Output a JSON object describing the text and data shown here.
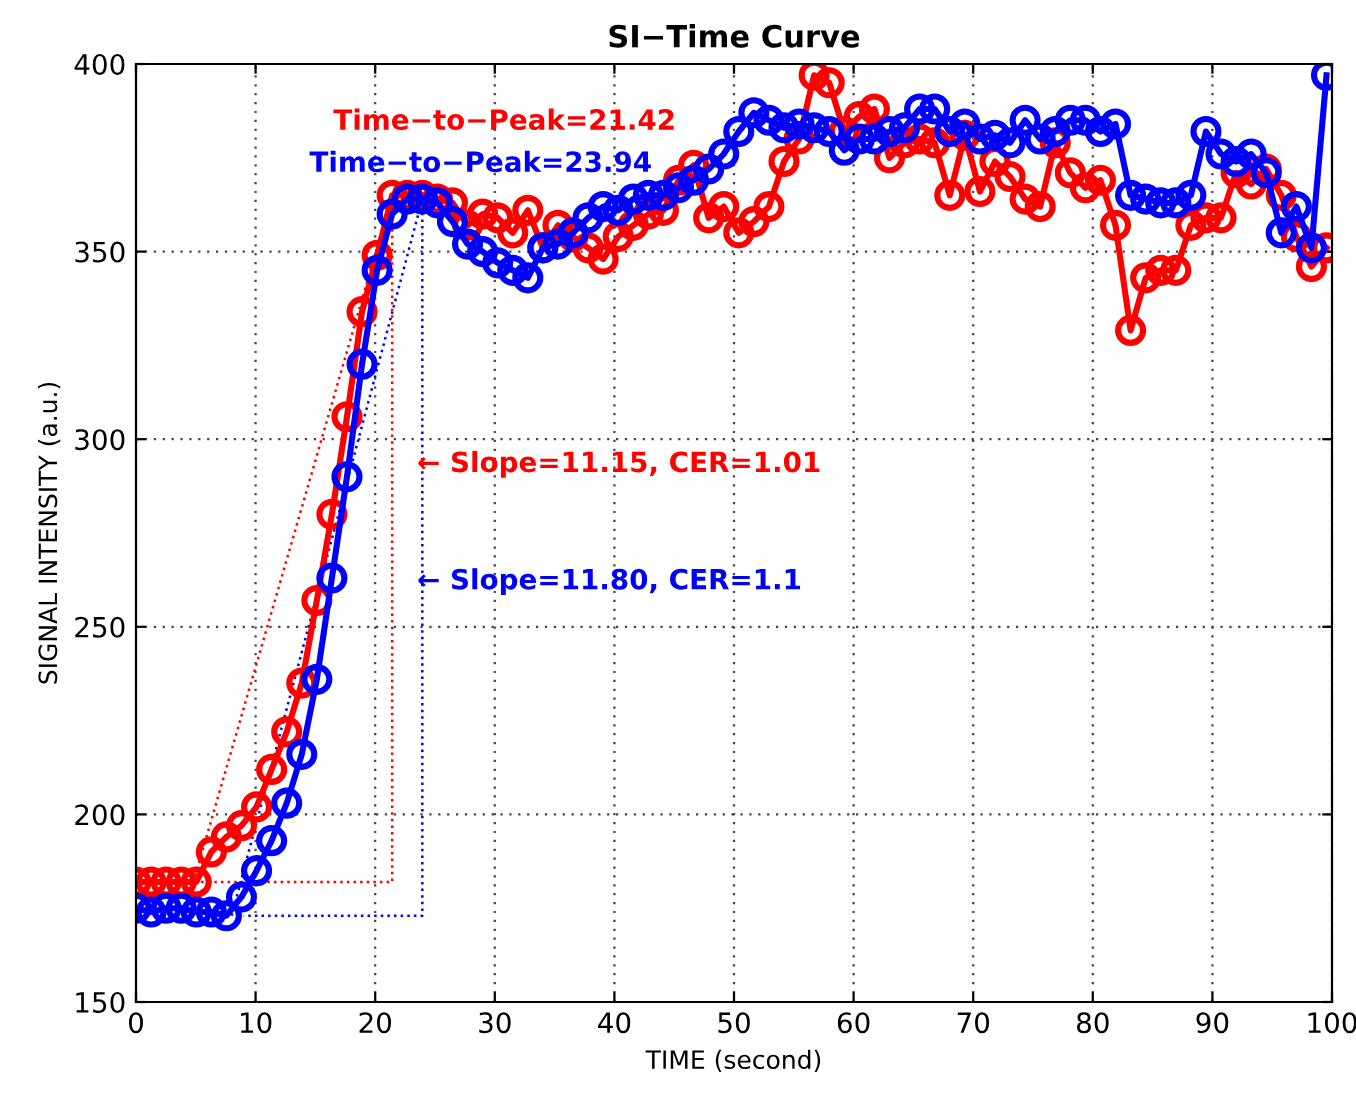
{
  "chart_data": {
    "type": "line",
    "title": "SI−Time Curve",
    "xlabel": "TIME (second)",
    "ylabel": "SIGNAL INTENSITY (a.u.)",
    "x": [
      0,
      1.26,
      2.52,
      3.78,
      5.04,
      6.3,
      7.56,
      8.82,
      10.08,
      11.34,
      12.6,
      13.86,
      15.12,
      16.38,
      17.64,
      18.9,
      20.16,
      21.42,
      22.68,
      23.94,
      25.2,
      26.46,
      27.72,
      28.98,
      30.24,
      31.5,
      32.76,
      34.02,
      35.28,
      36.54,
      37.8,
      39.06,
      40.32,
      41.58,
      42.84,
      44.1,
      45.36,
      46.62,
      47.88,
      49.14,
      50.4,
      51.66,
      52.92,
      54.18,
      55.44,
      56.7,
      57.96,
      59.22,
      60.48,
      61.74,
      63,
      64.26,
      65.52,
      66.78,
      68.04,
      69.3,
      70.56,
      71.82,
      73.08,
      74.34,
      75.6,
      76.86,
      78.12,
      79.38,
      80.64,
      81.9,
      83.16,
      84.42,
      85.68,
      86.94,
      88.2,
      89.46,
      90.72,
      91.98,
      93.24,
      94.5,
      95.76,
      97.02,
      98.28,
      99.54
    ],
    "series": [
      {
        "color": "#ff0000",
        "values": [
          182,
          182,
          182,
          182,
          182,
          190,
          194,
          197,
          202,
          212,
          222,
          235,
          257,
          280,
          306,
          334,
          349,
          365,
          365,
          365,
          364,
          363,
          357,
          360,
          359,
          355,
          361,
          351,
          357,
          354,
          351,
          348,
          354,
          357,
          360,
          361,
          369,
          373,
          359,
          362,
          355,
          358,
          362,
          374,
          380,
          397,
          395,
          382,
          386,
          388,
          375,
          379,
          380,
          379,
          365,
          381,
          366,
          374,
          370,
          364,
          362,
          379,
          371,
          367,
          369,
          357,
          329,
          343,
          345,
          345,
          357,
          359,
          359,
          371,
          368,
          372,
          365,
          354,
          346,
          351
        ]
      },
      {
        "color": "#0000ff",
        "values": [
          175,
          174,
          175,
          175,
          174,
          174,
          173,
          178,
          185,
          193,
          203,
          216,
          236,
          263,
          290,
          320,
          345,
          360,
          364,
          364,
          363,
          358,
          352,
          350,
          347,
          345,
          343,
          351,
          352,
          355,
          359,
          362,
          361,
          364,
          365,
          365,
          367,
          369,
          372,
          376,
          382,
          387,
          385,
          383,
          384,
          383,
          382,
          377,
          380,
          380,
          382,
          383,
          388,
          388,
          382,
          384,
          380,
          381,
          379,
          385,
          380,
          382,
          385,
          385,
          382,
          384,
          365,
          364,
          363,
          363,
          365,
          382,
          376,
          374,
          376,
          371,
          355,
          362,
          351,
          397
        ]
      },
      {
        "color": "#ff0000",
        "type": "line",
        "line_style": "dotted",
        "marker": "none",
        "x": [
          4.8,
          21.42,
          21.42,
          5.3
        ],
        "values": [
          182,
          365,
          182,
          182
        ]
      },
      {
        "color": "#0000ff",
        "type": "line",
        "line_style": "dotted",
        "marker": "none",
        "x": [
          8.0,
          23.94,
          23.94,
          9.0
        ],
        "values": [
          173,
          364,
          173,
          173
        ]
      }
    ],
    "annotations": [
      "Time−to−Peak=21.42",
      "Time−to−Peak=23.94",
      "← Slope=11.15, CER=1.01",
      "← Slope=11.80, CER=1.1"
    ],
    "xlim": [
      0,
      100
    ],
    "ylim": [
      150,
      400
    ],
    "xticks": [
      0,
      10,
      20,
      30,
      40,
      50,
      60,
      70,
      80,
      90,
      100
    ],
    "yticks": [
      150,
      200,
      250,
      300,
      350,
      400
    ],
    "grid": true,
    "marker": "circle",
    "line_style": "solid",
    "legend": false
  }
}
